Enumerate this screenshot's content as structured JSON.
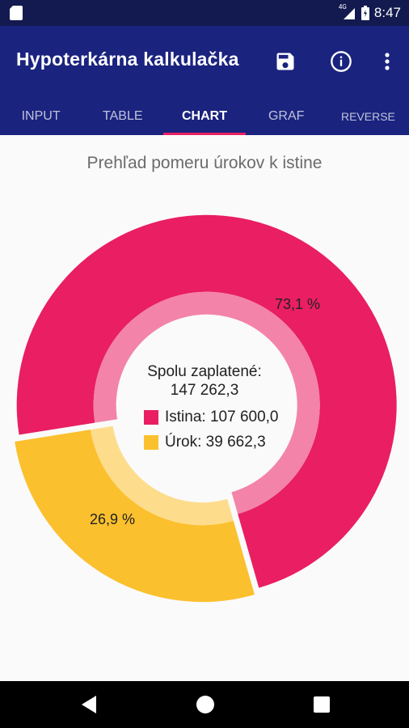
{
  "status_bar": {
    "network": "4G",
    "time": "8:47",
    "icons": [
      "sd-card-icon",
      "signal-icon",
      "battery-icon"
    ]
  },
  "app_bar": {
    "title": "Hypoterkárna kalkulačka",
    "actions": [
      "save-icon",
      "info-icon",
      "more-vert-icon"
    ],
    "tabs": [
      "INPUT",
      "TABLE",
      "CHART",
      "GRAF",
      "REVERSE"
    ],
    "active_tab": "CHART",
    "accent": "#e91e63",
    "background": "#1a237e"
  },
  "content": {
    "title": "Prehľad pomeru úrokov k istine",
    "total_label": "Spolu zaplatené:",
    "total_value": "147 262,3",
    "legend": [
      {
        "label": "Istina: 107 600,0",
        "color": "#e91e63"
      },
      {
        "label": "Úrok: 39 662,3",
        "color": "#fbc02d"
      }
    ]
  },
  "chart_data": {
    "type": "pie",
    "series": [
      {
        "name": "Istina",
        "value": 107600.0,
        "percent_label": "73,1 %",
        "color": "#e91e63"
      },
      {
        "name": "Úrok",
        "value": 39662.3,
        "percent_label": "26,9 %",
        "color": "#fbc02d"
      }
    ],
    "total": 147262.3,
    "donut": true
  },
  "nav_bar": {
    "buttons": [
      "back-icon",
      "home-icon",
      "recents-icon"
    ]
  }
}
